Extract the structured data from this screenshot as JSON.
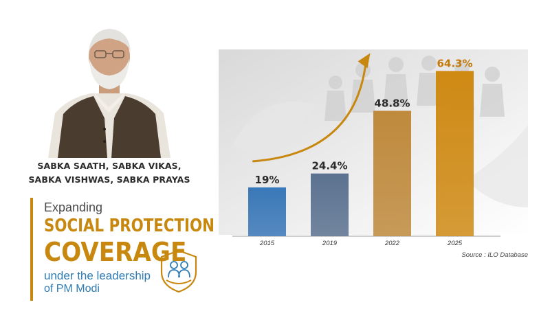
{
  "slogan": {
    "line1": "SABKA SAATH, SABKA VIKAS,",
    "line2": "SABKA VISHWAS, SABKA PRAYAS"
  },
  "promo": {
    "lead": "Expanding",
    "heading_line1": "SOCIAL PROTECTION",
    "heading_line2": "COVERAGE",
    "line3": "under the leadership",
    "line4": "of PM Modi",
    "icon": "family-shield-icon"
  },
  "colors": {
    "accent_gold": "#c8880f",
    "accent_blue": "#2f7bb3"
  },
  "chart_data": {
    "type": "bar",
    "title": "",
    "xlabel": "",
    "ylabel": "",
    "categories": [
      "2015",
      "2019",
      "2022",
      "2025"
    ],
    "values": [
      19,
      24.4,
      48.8,
      64.3
    ],
    "value_labels": [
      "19%",
      "24.4%",
      "48.8%",
      "64.3%"
    ],
    "ylim": [
      0,
      70
    ],
    "bar_colors": [
      "#3a78b8",
      "#5b7290",
      "#bf8a3d",
      "#cf8a14"
    ],
    "label_colors": [
      "#2b2b2b",
      "#2b2b2b",
      "#2b2b2b",
      "#c47a0a"
    ],
    "trend_arrow": true,
    "grid": false,
    "legend": "none"
  },
  "source": "Source : ILO Database"
}
